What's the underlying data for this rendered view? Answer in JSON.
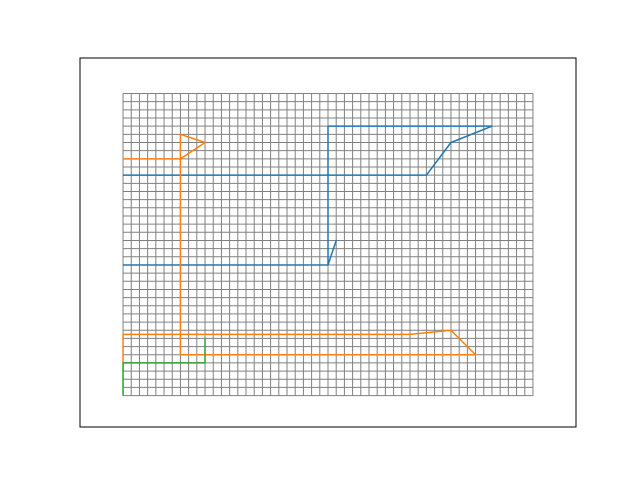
{
  "chart_data": {
    "type": "line",
    "title": "",
    "xlabel": "",
    "ylabel": "",
    "axes_ticks_visible": false,
    "grid": {
      "shown": true,
      "x_range": [
        0,
        50
      ],
      "y_range": [
        0,
        37
      ],
      "step": 1,
      "color": "#808080"
    },
    "xlim": [
      -5.25,
      55.25
    ],
    "ylim": [
      -3.85,
      41.35
    ],
    "series": [
      {
        "color": "#1f77b4",
        "points": [
          [
            0,
            27
          ],
          [
            37,
            27
          ],
          [
            40,
            31
          ],
          [
            45,
            33
          ],
          [
            25,
            33
          ],
          [
            25,
            16
          ],
          [
            26,
            19
          ],
          [
            25,
            16
          ],
          [
            0,
            16
          ]
        ]
      },
      {
        "color": "#ff7f0e",
        "points": [
          [
            0,
            29
          ],
          [
            7,
            29
          ],
          [
            10,
            31
          ],
          [
            7,
            32
          ],
          [
            7,
            5
          ],
          [
            43,
            5
          ],
          [
            40,
            8
          ],
          [
            35,
            7.5
          ],
          [
            0,
            7.5
          ],
          [
            0,
            4
          ]
        ]
      },
      {
        "color": "#2ca02c",
        "points": [
          [
            0,
            0
          ],
          [
            0,
            4
          ],
          [
            10,
            4
          ],
          [
            10,
            7
          ]
        ]
      }
    ]
  }
}
